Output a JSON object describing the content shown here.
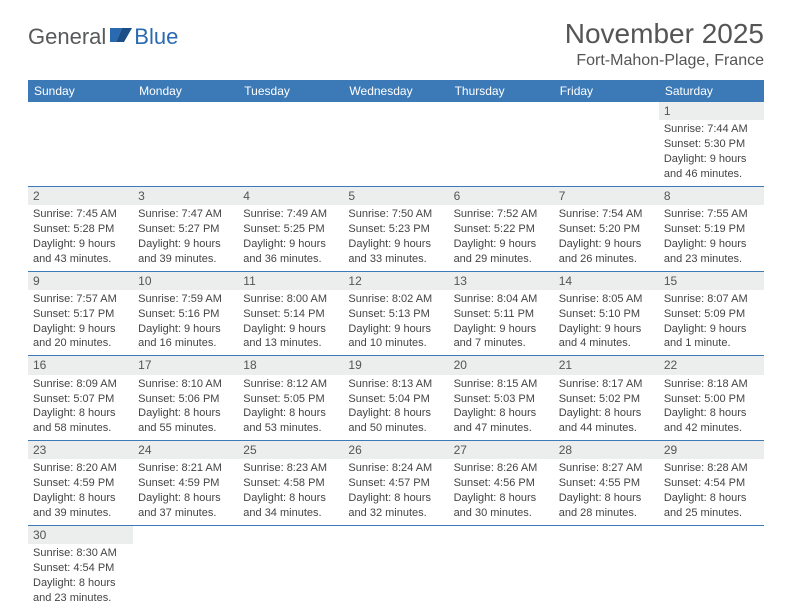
{
  "logo": {
    "general": "General",
    "blue": "Blue"
  },
  "title": "November 2025",
  "location": "Fort-Mahon-Plage, France",
  "colors": {
    "header_bg": "#3b79b7",
    "header_fg": "#ffffff",
    "daynum_bg": "#eceded",
    "text": "#555555",
    "border": "#3b79b7",
    "logo_gray": "#58595b",
    "logo_blue": "#2a6ab0"
  },
  "daysOfWeek": [
    "Sunday",
    "Monday",
    "Tuesday",
    "Wednesday",
    "Thursday",
    "Friday",
    "Saturday"
  ],
  "weeks": [
    [
      null,
      null,
      null,
      null,
      null,
      null,
      {
        "n": "1",
        "sr": "Sunrise: 7:44 AM",
        "ss": "Sunset: 5:30 PM",
        "d1": "Daylight: 9 hours",
        "d2": "and 46 minutes."
      }
    ],
    [
      {
        "n": "2",
        "sr": "Sunrise: 7:45 AM",
        "ss": "Sunset: 5:28 PM",
        "d1": "Daylight: 9 hours",
        "d2": "and 43 minutes."
      },
      {
        "n": "3",
        "sr": "Sunrise: 7:47 AM",
        "ss": "Sunset: 5:27 PM",
        "d1": "Daylight: 9 hours",
        "d2": "and 39 minutes."
      },
      {
        "n": "4",
        "sr": "Sunrise: 7:49 AM",
        "ss": "Sunset: 5:25 PM",
        "d1": "Daylight: 9 hours",
        "d2": "and 36 minutes."
      },
      {
        "n": "5",
        "sr": "Sunrise: 7:50 AM",
        "ss": "Sunset: 5:23 PM",
        "d1": "Daylight: 9 hours",
        "d2": "and 33 minutes."
      },
      {
        "n": "6",
        "sr": "Sunrise: 7:52 AM",
        "ss": "Sunset: 5:22 PM",
        "d1": "Daylight: 9 hours",
        "d2": "and 29 minutes."
      },
      {
        "n": "7",
        "sr": "Sunrise: 7:54 AM",
        "ss": "Sunset: 5:20 PM",
        "d1": "Daylight: 9 hours",
        "d2": "and 26 minutes."
      },
      {
        "n": "8",
        "sr": "Sunrise: 7:55 AM",
        "ss": "Sunset: 5:19 PM",
        "d1": "Daylight: 9 hours",
        "d2": "and 23 minutes."
      }
    ],
    [
      {
        "n": "9",
        "sr": "Sunrise: 7:57 AM",
        "ss": "Sunset: 5:17 PM",
        "d1": "Daylight: 9 hours",
        "d2": "and 20 minutes."
      },
      {
        "n": "10",
        "sr": "Sunrise: 7:59 AM",
        "ss": "Sunset: 5:16 PM",
        "d1": "Daylight: 9 hours",
        "d2": "and 16 minutes."
      },
      {
        "n": "11",
        "sr": "Sunrise: 8:00 AM",
        "ss": "Sunset: 5:14 PM",
        "d1": "Daylight: 9 hours",
        "d2": "and 13 minutes."
      },
      {
        "n": "12",
        "sr": "Sunrise: 8:02 AM",
        "ss": "Sunset: 5:13 PM",
        "d1": "Daylight: 9 hours",
        "d2": "and 10 minutes."
      },
      {
        "n": "13",
        "sr": "Sunrise: 8:04 AM",
        "ss": "Sunset: 5:11 PM",
        "d1": "Daylight: 9 hours",
        "d2": "and 7 minutes."
      },
      {
        "n": "14",
        "sr": "Sunrise: 8:05 AM",
        "ss": "Sunset: 5:10 PM",
        "d1": "Daylight: 9 hours",
        "d2": "and 4 minutes."
      },
      {
        "n": "15",
        "sr": "Sunrise: 8:07 AM",
        "ss": "Sunset: 5:09 PM",
        "d1": "Daylight: 9 hours",
        "d2": "and 1 minute."
      }
    ],
    [
      {
        "n": "16",
        "sr": "Sunrise: 8:09 AM",
        "ss": "Sunset: 5:07 PM",
        "d1": "Daylight: 8 hours",
        "d2": "and 58 minutes."
      },
      {
        "n": "17",
        "sr": "Sunrise: 8:10 AM",
        "ss": "Sunset: 5:06 PM",
        "d1": "Daylight: 8 hours",
        "d2": "and 55 minutes."
      },
      {
        "n": "18",
        "sr": "Sunrise: 8:12 AM",
        "ss": "Sunset: 5:05 PM",
        "d1": "Daylight: 8 hours",
        "d2": "and 53 minutes."
      },
      {
        "n": "19",
        "sr": "Sunrise: 8:13 AM",
        "ss": "Sunset: 5:04 PM",
        "d1": "Daylight: 8 hours",
        "d2": "and 50 minutes."
      },
      {
        "n": "20",
        "sr": "Sunrise: 8:15 AM",
        "ss": "Sunset: 5:03 PM",
        "d1": "Daylight: 8 hours",
        "d2": "and 47 minutes."
      },
      {
        "n": "21",
        "sr": "Sunrise: 8:17 AM",
        "ss": "Sunset: 5:02 PM",
        "d1": "Daylight: 8 hours",
        "d2": "and 44 minutes."
      },
      {
        "n": "22",
        "sr": "Sunrise: 8:18 AM",
        "ss": "Sunset: 5:00 PM",
        "d1": "Daylight: 8 hours",
        "d2": "and 42 minutes."
      }
    ],
    [
      {
        "n": "23",
        "sr": "Sunrise: 8:20 AM",
        "ss": "Sunset: 4:59 PM",
        "d1": "Daylight: 8 hours",
        "d2": "and 39 minutes."
      },
      {
        "n": "24",
        "sr": "Sunrise: 8:21 AM",
        "ss": "Sunset: 4:59 PM",
        "d1": "Daylight: 8 hours",
        "d2": "and 37 minutes."
      },
      {
        "n": "25",
        "sr": "Sunrise: 8:23 AM",
        "ss": "Sunset: 4:58 PM",
        "d1": "Daylight: 8 hours",
        "d2": "and 34 minutes."
      },
      {
        "n": "26",
        "sr": "Sunrise: 8:24 AM",
        "ss": "Sunset: 4:57 PM",
        "d1": "Daylight: 8 hours",
        "d2": "and 32 minutes."
      },
      {
        "n": "27",
        "sr": "Sunrise: 8:26 AM",
        "ss": "Sunset: 4:56 PM",
        "d1": "Daylight: 8 hours",
        "d2": "and 30 minutes."
      },
      {
        "n": "28",
        "sr": "Sunrise: 8:27 AM",
        "ss": "Sunset: 4:55 PM",
        "d1": "Daylight: 8 hours",
        "d2": "and 28 minutes."
      },
      {
        "n": "29",
        "sr": "Sunrise: 8:28 AM",
        "ss": "Sunset: 4:54 PM",
        "d1": "Daylight: 8 hours",
        "d2": "and 25 minutes."
      }
    ],
    [
      {
        "n": "30",
        "sr": "Sunrise: 8:30 AM",
        "ss": "Sunset: 4:54 PM",
        "d1": "Daylight: 8 hours",
        "d2": "and 23 minutes."
      },
      null,
      null,
      null,
      null,
      null,
      null
    ]
  ]
}
